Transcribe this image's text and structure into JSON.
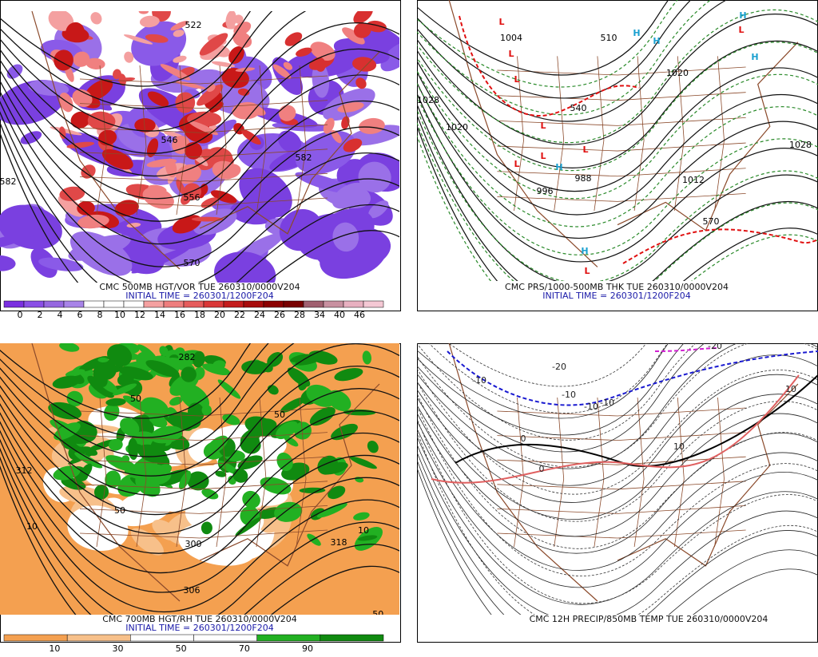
{
  "panels": [
    {
      "caption": "CMC 500MB HGT/VOR TUE 260310/0000V204",
      "initial_time": "INITIAL TIME = 260301/1200F204",
      "colorbar": {
        "labels": [
          0,
          2,
          4,
          6,
          8,
          10,
          12,
          14,
          16,
          18,
          20,
          22,
          24,
          26,
          28,
          34,
          40,
          46
        ],
        "colors": [
          "#7a2fe0",
          "#8a4fe6",
          "#9668e0",
          "#a884e8",
          "#ffffff",
          "#ffffff",
          "#ffffff",
          "#f4a0a0",
          "#ee7d7d",
          "#e65c5c",
          "#da3838",
          "#c41c1c",
          "#a80c0c",
          "#8c0000",
          "#780000",
          "#a06070",
          "#c890a0",
          "#e8b0c0",
          "#f4c8d4"
        ]
      },
      "labels": [
        "522",
        "582",
        "556",
        "570",
        "582",
        "546"
      ]
    },
    {
      "caption": "CMC PRS/1000-500MB THK TUE 260310/0000V204",
      "initial_time": "INITIAL TIME = 260301/1200F204",
      "labels": [
        "1004",
        "1028",
        "1020",
        "1020",
        "1028",
        "996",
        "988",
        "1012",
        "540",
        "570",
        "510"
      ],
      "highs": [
        "H",
        "H",
        "H",
        "H",
        "H",
        "H"
      ],
      "lows": [
        "L",
        "L",
        "L",
        "L",
        "L",
        "L",
        "L",
        "L",
        "L"
      ]
    },
    {
      "caption": "CMC 700MB HGT/RH TUE 260310/0000V204",
      "initial_time": "INITIAL TIME = 260301/1200F204",
      "colorbar": {
        "labels": [
          10,
          30,
          50,
          70,
          90
        ],
        "colors": [
          "#f4a050",
          "#f7c08a",
          "#ffffff",
          "#ffffff",
          "#22b022",
          "#108a10"
        ]
      },
      "labels": [
        "282",
        "312",
        "50",
        "50",
        "50",
        "10",
        "10",
        "300",
        "306",
        "318",
        "50."
      ]
    },
    {
      "caption": "CMC 12H PRECIP/850MB TEMP TUE 260310/0000V204",
      "labels": [
        "-10",
        "-10",
        "-20",
        "-20",
        "-10",
        "-10",
        "0",
        "0",
        "10",
        "10"
      ]
    }
  ]
}
